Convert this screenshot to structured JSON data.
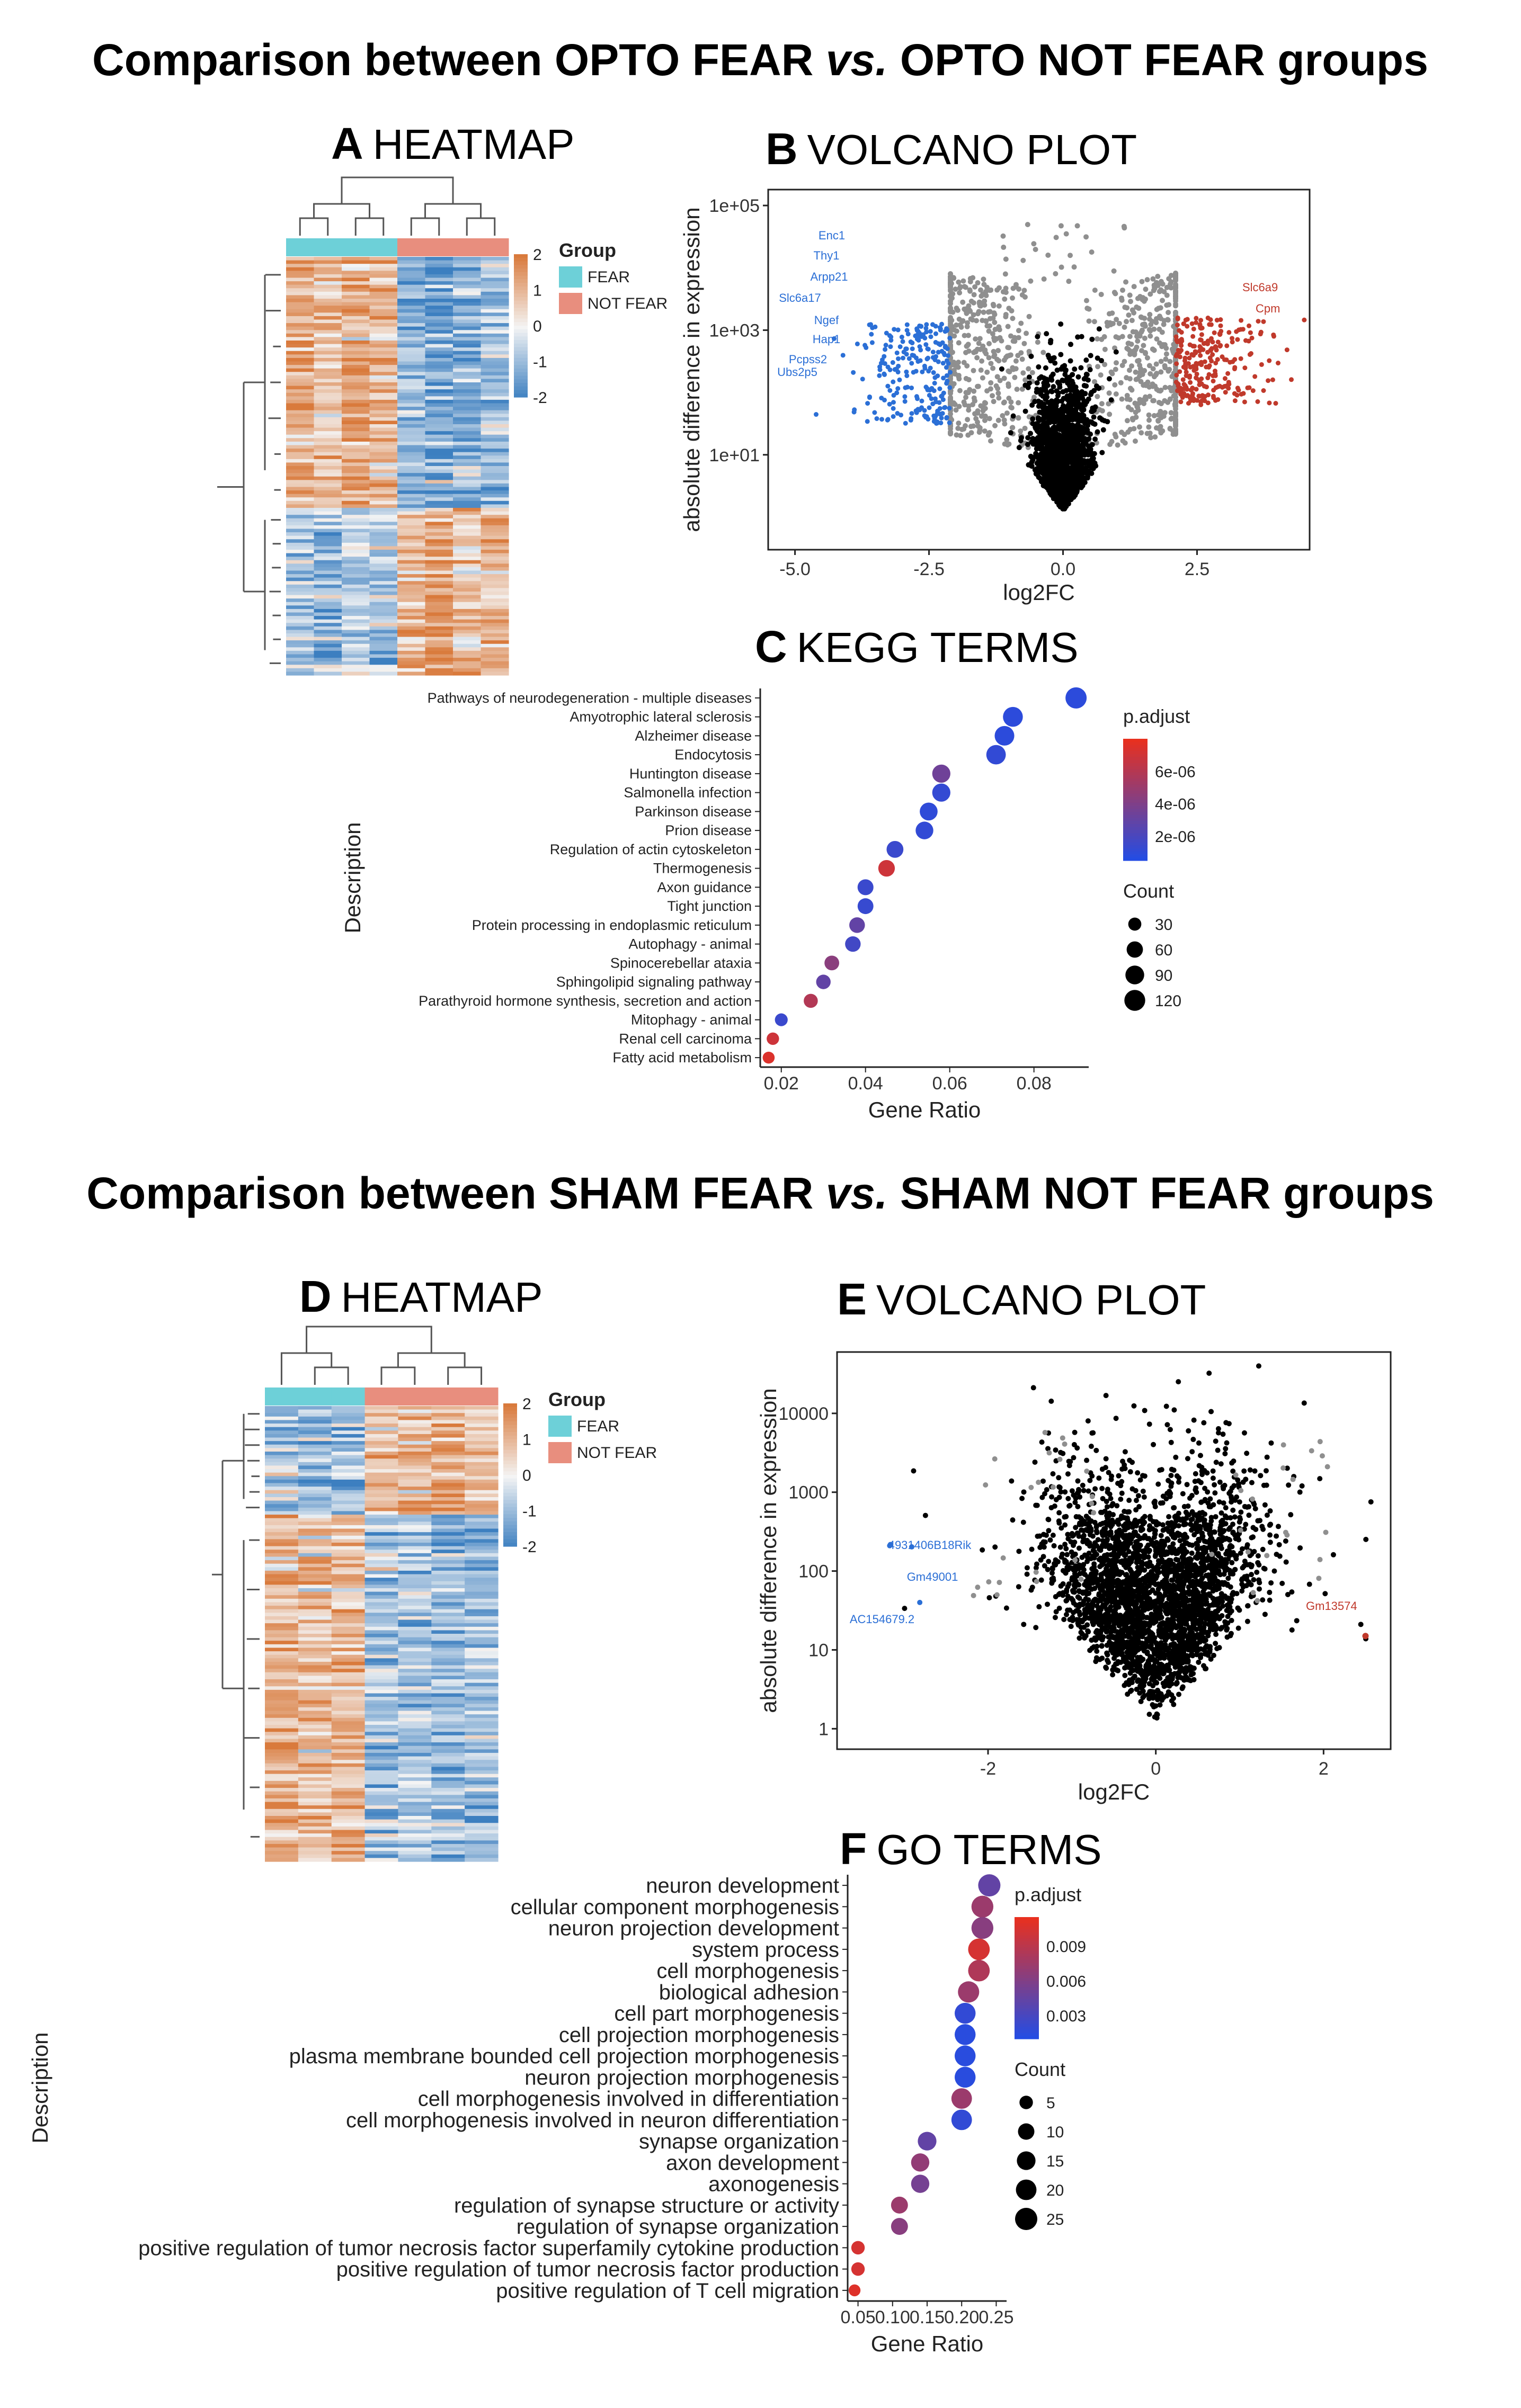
{
  "sections": [
    {
      "title_a": "Comparison between OPTO FEAR ",
      "title_vs": "vs.",
      "title_b": " OPTO NOT FEAR groups"
    },
    {
      "title_a": "Comparison between SHAM FEAR ",
      "title_vs": "vs.",
      "title_b": " SHAM NOT FEAR groups"
    }
  ],
  "colors": {
    "fear": "#6dd0d8",
    "not_fear": "#e88e7e",
    "low": "#3c7fc0",
    "mid": "#f4f4f4",
    "high": "#d97a3c",
    "volcano_blue": "#2b6fd6",
    "volcano_red": "#c0392b",
    "volcano_grey": "#8f8f8f",
    "volcano_black": "#000000",
    "padj_low": "#1f4de8",
    "padj_high": "#e8301f"
  },
  "chart_data": [
    {
      "id": "A",
      "type": "heatmap",
      "panel_letter": "A",
      "panel_title": "HEATMAP",
      "legend_title": "Group",
      "groups": [
        "FEAR",
        "NOT FEAR"
      ],
      "column_groups": [
        "FEAR",
        "FEAR",
        "FEAR",
        "FEAR",
        "NOT FEAR",
        "NOT FEAR",
        "NOT FEAR",
        "NOT FEAR"
      ],
      "colorbar_ticks": [
        "2",
        "1",
        "0",
        "-1",
        "-2"
      ],
      "range": [
        -2,
        2
      ],
      "blocks": [
        {
          "rows": 0.6,
          "pattern": [
            1.2,
            0.8,
            1.3,
            1.0,
            -1.0,
            -1.3,
            -1.1,
            -0.9
          ]
        },
        {
          "rows": 0.4,
          "pattern": [
            -0.7,
            -0.9,
            -0.6,
            -0.8,
            0.9,
            1.4,
            0.8,
            1.0
          ]
        }
      ]
    },
    {
      "id": "B",
      "type": "scatter",
      "panel_letter": "B",
      "panel_title": "VOLCANO PLOT",
      "xlabel": "log2FC",
      "ylabel": "absolute difference in expression",
      "x_ticks": [
        "-5.0",
        "-2.5",
        "0.0",
        "2.5"
      ],
      "y_ticks": [
        "1e+01",
        "1e+03",
        "1e+05"
      ],
      "xlim": [
        -5.5,
        4.6
      ],
      "ylog": true,
      "ylim": [
        0.3,
        180000
      ],
      "labels_down": [
        "Enc1",
        "Thy1",
        "Arpp21",
        "Slc6a17",
        "Ngef",
        "Hap1",
        "Pcpss2",
        "Ubs2p5"
      ],
      "labels_up": [
        "Slc6a9",
        "Cpm"
      ]
    },
    {
      "id": "C",
      "type": "scatter",
      "panel_letter": "C",
      "panel_title": "KEGG TERMS",
      "xlabel": "Gene Ratio",
      "ylabel": "Description",
      "x_ticks": [
        "0.02",
        "0.04",
        "0.06",
        "0.08"
      ],
      "xlim": [
        0.015,
        0.093
      ],
      "padj_title": "p.adjust",
      "padj_ticks": [
        "6e-06",
        "4e-06",
        "2e-06"
      ],
      "padj_range": [
        5e-07,
        8e-06
      ],
      "count_title": "Count",
      "count_ticks": [
        "30",
        "60",
        "90",
        "120"
      ],
      "terms": [
        {
          "name": "Pathways of neurodegeneration - multiple diseases",
          "ratio": 0.09,
          "count": 125,
          "padj": 1e-06
        },
        {
          "name": "Amyotrophic lateral sclerosis",
          "ratio": 0.075,
          "count": 105,
          "padj": 1e-06
        },
        {
          "name": "Alzheimer disease",
          "ratio": 0.073,
          "count": 102,
          "padj": 1e-06
        },
        {
          "name": "Endocytosis",
          "ratio": 0.071,
          "count": 100,
          "padj": 1.2e-06
        },
        {
          "name": "Huntington disease",
          "ratio": 0.058,
          "count": 82,
          "padj": 3.5e-06
        },
        {
          "name": "Salmonella infection",
          "ratio": 0.058,
          "count": 82,
          "padj": 1.3e-06
        },
        {
          "name": "Parkinson disease",
          "ratio": 0.055,
          "count": 78,
          "padj": 1.1e-06
        },
        {
          "name": "Prion disease",
          "ratio": 0.054,
          "count": 76,
          "padj": 1.2e-06
        },
        {
          "name": "Regulation of actin cytoskeleton",
          "ratio": 0.047,
          "count": 66,
          "padj": 1.5e-06
        },
        {
          "name": "Thermogenesis",
          "ratio": 0.045,
          "count": 63,
          "padj": 7e-06
        },
        {
          "name": "Axon guidance",
          "ratio": 0.04,
          "count": 56,
          "padj": 1.5e-06
        },
        {
          "name": "Tight junction",
          "ratio": 0.04,
          "count": 55,
          "padj": 1.4e-06
        },
        {
          "name": "Protein processing in endoplasmic reticulum",
          "ratio": 0.038,
          "count": 53,
          "padj": 3e-06
        },
        {
          "name": "Autophagy - animal",
          "ratio": 0.037,
          "count": 52,
          "padj": 1.8e-06
        },
        {
          "name": "Spinocerebellar ataxia",
          "ratio": 0.032,
          "count": 44,
          "padj": 4.5e-06
        },
        {
          "name": "Sphingolipid signaling pathway",
          "ratio": 0.03,
          "count": 42,
          "padj": 3e-06
        },
        {
          "name": "Parathyroid hormone synthesis, secretion and action",
          "ratio": 0.027,
          "count": 38,
          "padj": 6e-06
        },
        {
          "name": "Mitophagy - animal",
          "ratio": 0.02,
          "count": 28,
          "padj": 1.5e-06
        },
        {
          "name": "Renal cell carcinoma",
          "ratio": 0.018,
          "count": 25,
          "padj": 7e-06
        },
        {
          "name": "Fatty acid metabolism",
          "ratio": 0.017,
          "count": 22,
          "padj": 7.5e-06
        }
      ]
    },
    {
      "id": "D",
      "type": "heatmap",
      "panel_letter": "D",
      "panel_title": "HEATMAP",
      "legend_title": "Group",
      "groups": [
        "FEAR",
        "NOT FEAR"
      ],
      "column_groups": [
        "FEAR",
        "FEAR",
        "FEAR",
        "NOT FEAR",
        "NOT FEAR",
        "NOT FEAR",
        "NOT FEAR"
      ],
      "colorbar_ticks": [
        "2",
        "1",
        "0",
        "-1",
        "-2"
      ],
      "range": [
        -2,
        2
      ],
      "blocks": [
        {
          "rows": 0.24,
          "pattern": [
            -0.9,
            -1.1,
            -0.8,
            0.9,
            0.8,
            1.2,
            0.9
          ]
        },
        {
          "rows": 0.76,
          "pattern": [
            1.1,
            0.8,
            1.0,
            -0.9,
            -0.7,
            -1.0,
            -0.8
          ]
        }
      ]
    },
    {
      "id": "E",
      "type": "scatter",
      "panel_letter": "E",
      "panel_title": "VOLCANO PLOT",
      "xlabel": "log2FC",
      "ylabel": "absolute difference in expression",
      "x_ticks": [
        "-2",
        "0",
        "2"
      ],
      "y_ticks": [
        "1",
        "10",
        "100",
        "1000",
        "10000"
      ],
      "xlim": [
        -3.8,
        2.8
      ],
      "ylog": true,
      "ylim": [
        0.55,
        60000
      ],
      "labels_down": [
        "4931406B18Rik",
        "Gm49001",
        "AC154679.2"
      ],
      "labels_up": [
        "Gm13574"
      ]
    },
    {
      "id": "F",
      "type": "scatter",
      "panel_letter": "F",
      "panel_title": "GO TERMS",
      "xlabel": "Gene Ratio",
      "ylabel": "Description",
      "x_ticks": [
        "0.05",
        "0.10",
        "0.15",
        "0.20",
        "0.25"
      ],
      "xlim": [
        0.035,
        0.265
      ],
      "padj_title": "p.adjust",
      "padj_ticks": [
        "0.009",
        "0.006",
        "0.003"
      ],
      "padj_range": [
        0.001,
        0.0115
      ],
      "count_title": "Count",
      "count_ticks": [
        "5",
        "10",
        "15",
        "20",
        "25"
      ],
      "terms": [
        {
          "name": "neuron development",
          "ratio": 0.24,
          "count": 25,
          "padj": 0.0045
        },
        {
          "name": "cellular component morphogenesis",
          "ratio": 0.23,
          "count": 24,
          "padj": 0.0075
        },
        {
          "name": "neuron projection development",
          "ratio": 0.23,
          "count": 24,
          "padj": 0.0065
        },
        {
          "name": "system process",
          "ratio": 0.225,
          "count": 23,
          "padj": 0.0105
        },
        {
          "name": "cell morphogenesis",
          "ratio": 0.225,
          "count": 23,
          "padj": 0.0085
        },
        {
          "name": "biological adhesion",
          "ratio": 0.21,
          "count": 22,
          "padj": 0.0075
        },
        {
          "name": "cell part morphogenesis",
          "ratio": 0.205,
          "count": 21,
          "padj": 0.002
        },
        {
          "name": "cell projection morphogenesis",
          "ratio": 0.205,
          "count": 21,
          "padj": 0.0015
        },
        {
          "name": "plasma membrane bounded cell projection morphogenesis",
          "ratio": 0.205,
          "count": 21,
          "padj": 0.0015
        },
        {
          "name": "neuron projection morphogenesis",
          "ratio": 0.205,
          "count": 21,
          "padj": 0.0015
        },
        {
          "name": "cell morphogenesis involved in differentiation",
          "ratio": 0.2,
          "count": 20,
          "padj": 0.0075
        },
        {
          "name": "cell morphogenesis involved in neuron differentiation",
          "ratio": 0.2,
          "count": 20,
          "padj": 0.002
        },
        {
          "name": "synapse organization",
          "ratio": 0.15,
          "count": 15,
          "padj": 0.0045
        },
        {
          "name": "axon development",
          "ratio": 0.14,
          "count": 14,
          "padj": 0.007
        },
        {
          "name": "axonogenesis",
          "ratio": 0.14,
          "count": 14,
          "padj": 0.0055
        },
        {
          "name": "regulation of synapse structure or activity",
          "ratio": 0.11,
          "count": 11,
          "padj": 0.0075
        },
        {
          "name": "regulation of synapse organization",
          "ratio": 0.11,
          "count": 11,
          "padj": 0.0065
        },
        {
          "name": "positive regulation of tumor necrosis factor superfamily cytokine production",
          "ratio": 0.05,
          "count": 5,
          "padj": 0.0105
        },
        {
          "name": "positive regulation of tumor necrosis factor production",
          "ratio": 0.05,
          "count": 5,
          "padj": 0.0105
        },
        {
          "name": "positive regulation of T cell migration",
          "ratio": 0.045,
          "count": 3,
          "padj": 0.011
        }
      ]
    }
  ]
}
